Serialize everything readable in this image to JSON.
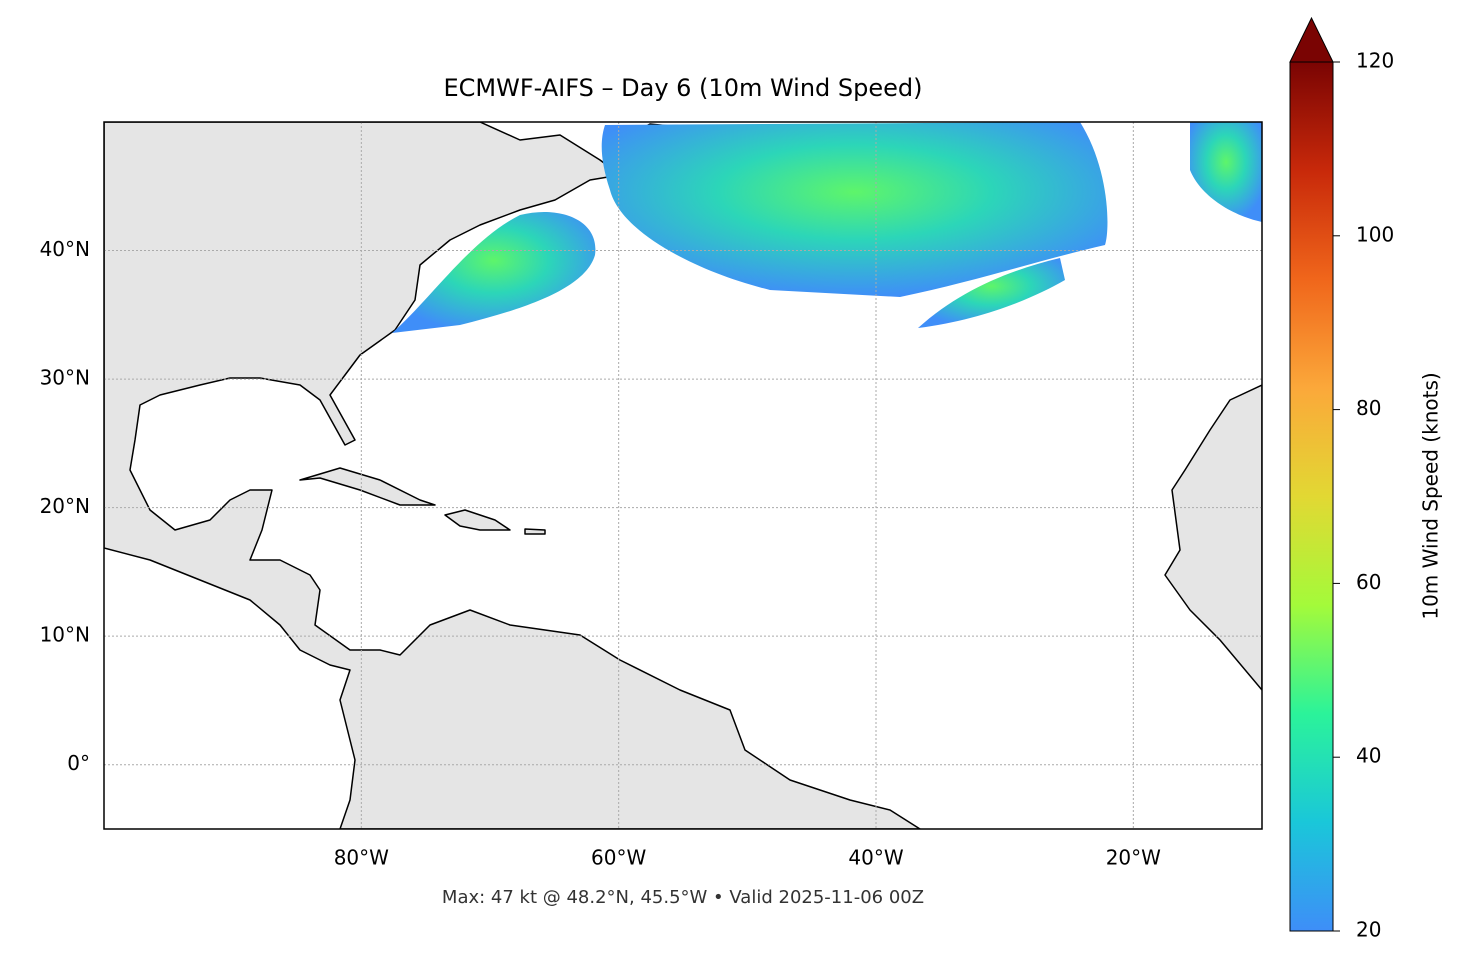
{
  "chart_data": {
    "type": "map",
    "title": "ECMWF-AIFS – Day 6 (10m Wind Speed)",
    "footer": "Max: 47 kt @ 48.2°N, 45.5°W • Valid 2025-11-06 00Z",
    "xlim": [
      -100,
      -10
    ],
    "ylim": [
      -5,
      50
    ],
    "xticks": [
      {
        "value": -80,
        "label": "80°W"
      },
      {
        "value": -60,
        "label": "60°W"
      },
      {
        "value": -40,
        "label": "40°W"
      },
      {
        "value": -20,
        "label": "20°W"
      }
    ],
    "yticks": [
      {
        "value": 0,
        "label": "0°"
      },
      {
        "value": 10,
        "label": "10°N"
      },
      {
        "value": 20,
        "label": "20°N"
      },
      {
        "value": 30,
        "label": "30°N"
      },
      {
        "value": 40,
        "label": "40°N"
      }
    ],
    "grid": true,
    "colorbar": {
      "label": "10m Wind Speed (knots)",
      "lim": [
        20,
        120
      ],
      "ticks": [
        20,
        40,
        60,
        80,
        100,
        120
      ],
      "colors": [
        "#3e8ef8",
        "#1ac7d9",
        "#2bf39a",
        "#a4fa3a",
        "#e2d833",
        "#fba83a",
        "#f0661b",
        "#c8290a",
        "#7a0403"
      ]
    }
  }
}
